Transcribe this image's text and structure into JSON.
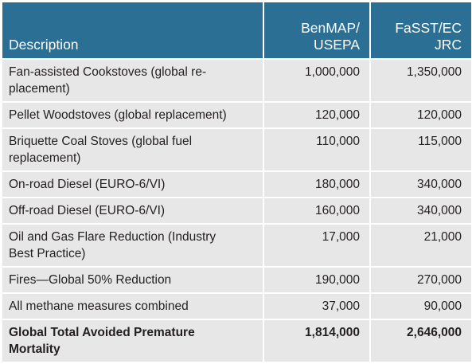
{
  "header": {
    "description": "Description",
    "col_a": [
      "BenMAP/",
      "USEPA"
    ],
    "col_b": [
      "FaSST/EC",
      "JRC"
    ]
  },
  "rows": [
    {
      "lines": [
        "Fan-assisted Cookstoves (global re-",
        "placement)"
      ],
      "a": "1,000,000",
      "b": "1,350,000"
    },
    {
      "lines": [
        "Pellet Woodstoves (global replacement)"
      ],
      "a": "120,000",
      "b": "120,000"
    },
    {
      "lines": [
        "Briquette Coal Stoves (global fuel",
        "replacement)"
      ],
      "a": "110,000",
      "b": "115,000"
    },
    {
      "lines": [
        "On-road Diesel (EURO-6/VI)"
      ],
      "a": "180,000",
      "b": "340,000"
    },
    {
      "lines": [
        "Off-road Diesel (EURO-6/VI)"
      ],
      "a": "160,000",
      "b": "340,000"
    },
    {
      "lines": [
        "Oil and Gas Flare Reduction (Industry",
        "Best Practice)"
      ],
      "a": "17,000",
      "b": "21,000"
    },
    {
      "lines": [
        "Fires—Global 50% Reduction"
      ],
      "a": "190,000",
      "b": "270,000"
    },
    {
      "lines": [
        "All methane measures combined"
      ],
      "a": "37,000",
      "b": "90,000"
    },
    {
      "lines": [
        "Global Total Avoided Premature",
        "Mortality"
      ],
      "a": "1,814,000",
      "b": "2,646,000"
    }
  ],
  "colors": {
    "header_bg": "#2b6f94",
    "row_bg": "#e8e7e7"
  }
}
